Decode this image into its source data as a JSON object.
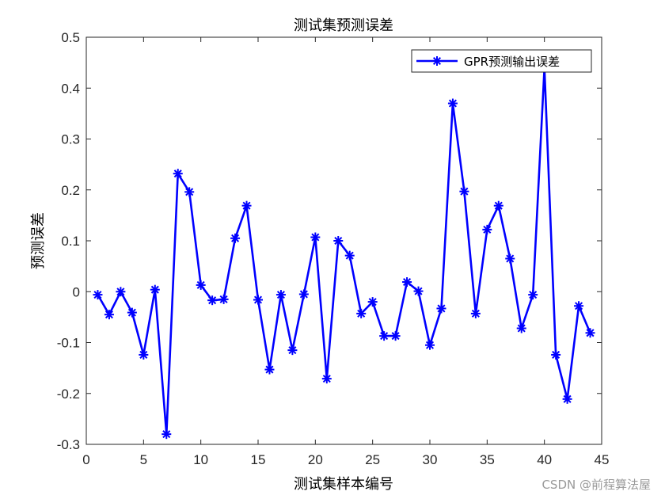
{
  "chart_data": {
    "type": "line",
    "title": "测试集预测误差",
    "xlabel": "测试集样本编号",
    "ylabel": "预测误差",
    "xlim": [
      0,
      45
    ],
    "ylim": [
      -0.3,
      0.5
    ],
    "xticks": [
      0,
      5,
      10,
      15,
      20,
      25,
      30,
      35,
      40,
      45
    ],
    "yticks": [
      -0.3,
      -0.2,
      -0.1,
      0,
      0.1,
      0.2,
      0.3,
      0.4,
      0.5
    ],
    "ytick_labels": [
      "-0.3",
      "-0.2",
      "-0.1",
      "0",
      "0.1",
      "0.2",
      "0.3",
      "0.4",
      "0.5"
    ],
    "grid": false,
    "legend_position": "top-right",
    "series": [
      {
        "name": "GPR预测输出误差",
        "color": "#0000ff",
        "marker": "asterisk",
        "x": [
          1,
          2,
          3,
          4,
          5,
          6,
          7,
          8,
          9,
          10,
          11,
          12,
          13,
          14,
          15,
          16,
          17,
          18,
          19,
          20,
          21,
          22,
          23,
          24,
          25,
          26,
          27,
          28,
          29,
          30,
          31,
          32,
          33,
          34,
          35,
          36,
          37,
          38,
          39,
          40,
          41,
          42,
          43,
          44
        ],
        "y": [
          -0.006,
          -0.045,
          0.0,
          -0.041,
          -0.124,
          0.004,
          -0.28,
          0.232,
          0.196,
          0.013,
          -0.017,
          -0.015,
          0.105,
          0.169,
          -0.016,
          -0.153,
          -0.006,
          -0.115,
          -0.005,
          0.107,
          -0.171,
          0.1,
          0.071,
          -0.043,
          -0.02,
          -0.087,
          -0.087,
          0.019,
          0.001,
          -0.105,
          -0.033,
          0.37,
          0.197,
          -0.043,
          0.122,
          0.169,
          0.065,
          -0.072,
          -0.006,
          0.44,
          -0.124,
          -0.211,
          -0.028,
          -0.081
        ]
      }
    ]
  },
  "watermark": "CSDN @前程算法屋"
}
